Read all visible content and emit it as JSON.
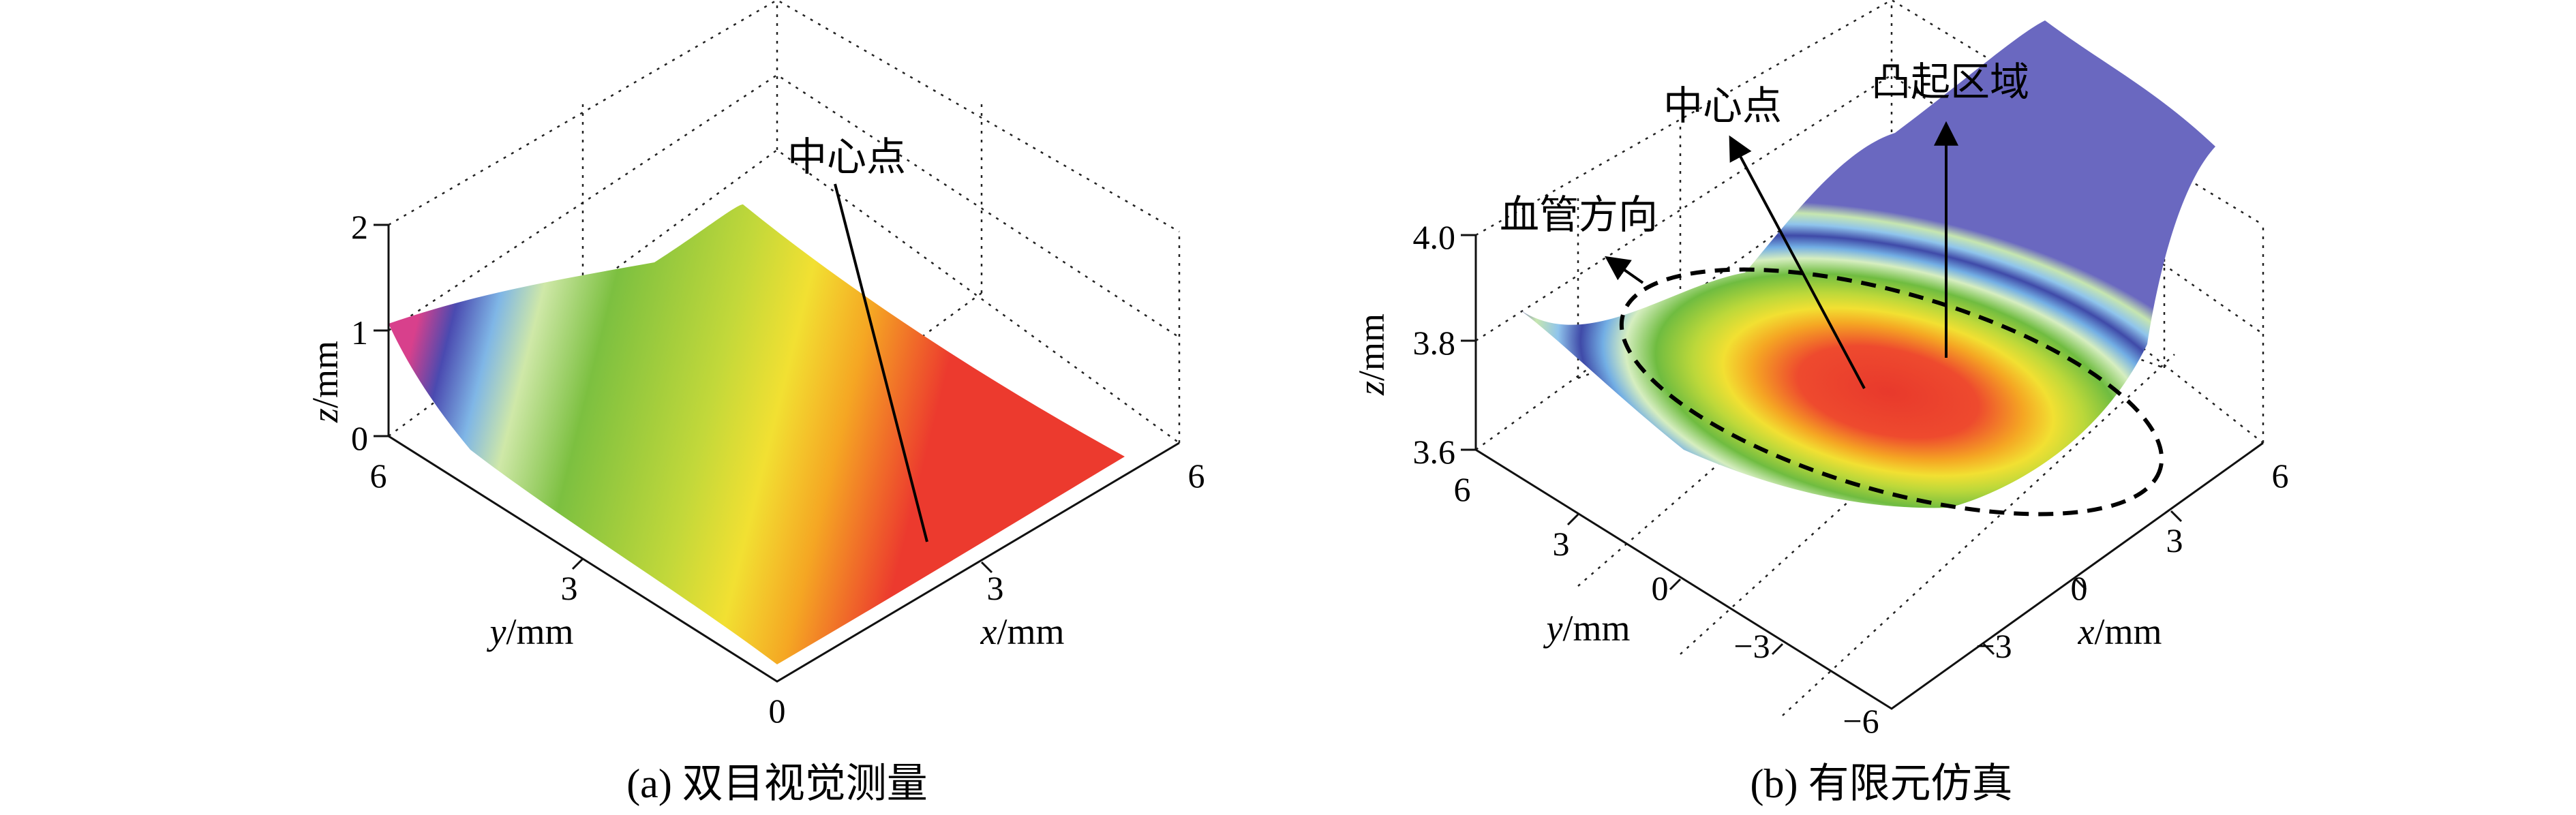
{
  "chart_data": [
    {
      "type": "surface",
      "caption": "(a) 双目视觉测量",
      "xlabel": {
        "var": "x",
        "unit": "/mm"
      },
      "ylabel": {
        "var": "y",
        "unit": "/mm"
      },
      "zlabel": {
        "var": "z",
        "unit": "/mm"
      },
      "x_ticks": [
        "0",
        "3",
        "6"
      ],
      "y_ticks": [
        "0",
        "3",
        "6"
      ],
      "z_ticks": [
        "0",
        "1",
        "2"
      ],
      "xlim": [
        0,
        6
      ],
      "ylim": [
        0,
        6
      ],
      "zlim": [
        0,
        2
      ],
      "annotations": [
        {
          "text": "中心点",
          "target": "surface-center"
        }
      ],
      "colormap": "jet (blue-low, red-high)"
    },
    {
      "type": "surface",
      "caption": "(b) 有限元仿真",
      "xlabel": {
        "var": "x",
        "unit": "/mm"
      },
      "ylabel": {
        "var": "y",
        "unit": "/mm"
      },
      "zlabel": {
        "var": "z",
        "unit": "/mm"
      },
      "x_ticks": [
        "−6",
        "−3",
        "0",
        "3",
        "6"
      ],
      "y_ticks": [
        "−6",
        "−3",
        "0",
        "3",
        "6"
      ],
      "z_ticks": [
        "3.6",
        "3.8",
        "4.0"
      ],
      "xlim": [
        -6,
        6
      ],
      "ylim": [
        -6,
        6
      ],
      "zlim": [
        3.6,
        4.0
      ],
      "annotations": [
        {
          "text": "中心点",
          "target": "surface-center"
        },
        {
          "text": "凸起区域",
          "target": "dashed-ellipse"
        },
        {
          "text": "血管方向",
          "target": "arrow"
        }
      ],
      "colormap": "jet (blue-high, red-low)"
    }
  ]
}
